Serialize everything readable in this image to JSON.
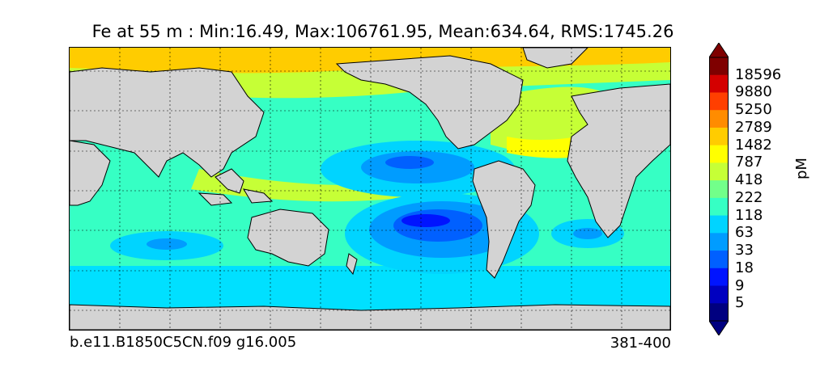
{
  "title": "Fe at 55 m : Min:16.49, Max:106761.95, Mean:634.64, RMS:1745.26",
  "footer": {
    "case": "b.e11.B1850C5CN.f09 g16.005",
    "years": "381-400"
  },
  "colorbar": {
    "unit": "pM",
    "levels": [
      "18596",
      "9880",
      "5250",
      "2789",
      "1482",
      "787",
      "418",
      "222",
      "118",
      "63",
      "33",
      "18",
      "9",
      "5"
    ],
    "colors": [
      "#7f0000",
      "#d40000",
      "#ff3f00",
      "#ff8c00",
      "#ffcc00",
      "#ffff00",
      "#c6ff36",
      "#72ff8a",
      "#36ffc4",
      "#00d4ff",
      "#009cff",
      "#0060ff",
      "#0014ff",
      "#0000c0",
      "#000080"
    ]
  },
  "palette": {
    "land": "#d3d3d3",
    "coast": "#000000"
  }
}
